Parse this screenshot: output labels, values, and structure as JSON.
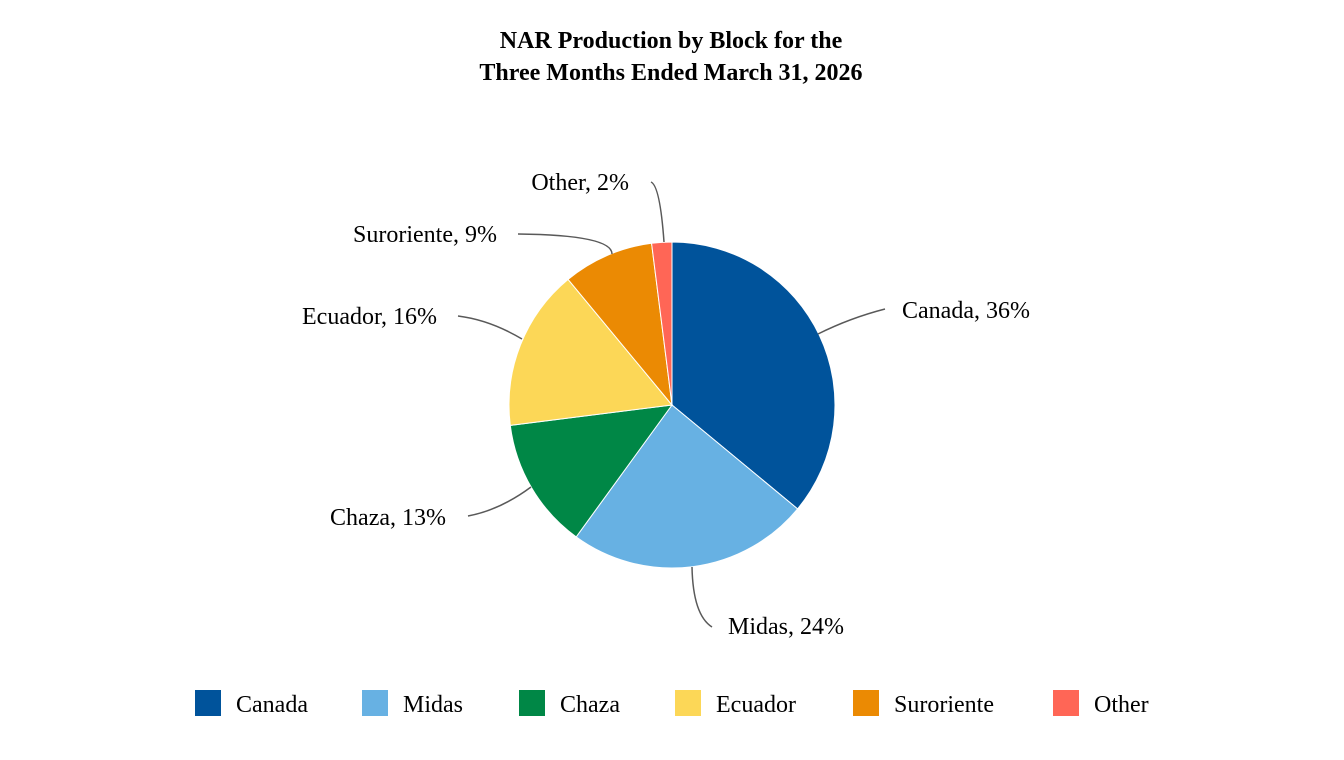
{
  "chart_data": {
    "type": "pie",
    "title_lines": [
      "NAR Production by Block for the",
      "Three Months Ended March 31, 2026"
    ],
    "slices": [
      {
        "name": "Canada",
        "value": 36,
        "label": "Canada, 36%",
        "color": "#00539b"
      },
      {
        "name": "Midas",
        "value": 24,
        "label": "Midas, 24%",
        "color": "#67b1e3"
      },
      {
        "name": "Chaza",
        "value": 13,
        "label": "Chaza, 13%",
        "color": "#008746"
      },
      {
        "name": "Ecuador",
        "value": 16,
        "label": "Ecuador, 16%",
        "color": "#fcd757"
      },
      {
        "name": "Suroriente",
        "value": 9,
        "label": "Suroriente, 9%",
        "color": "#eb8a03"
      },
      {
        "name": "Other",
        "value": 2,
        "label": "Other, 2%",
        "color": "#ff6656"
      }
    ],
    "start_angle": "12 o'clock",
    "direction": "clockwise",
    "legend": {
      "position": "bottom",
      "entries": [
        "Canada",
        "Midas",
        "Chaza",
        "Ecuador",
        "Suroriente",
        "Other"
      ]
    }
  }
}
